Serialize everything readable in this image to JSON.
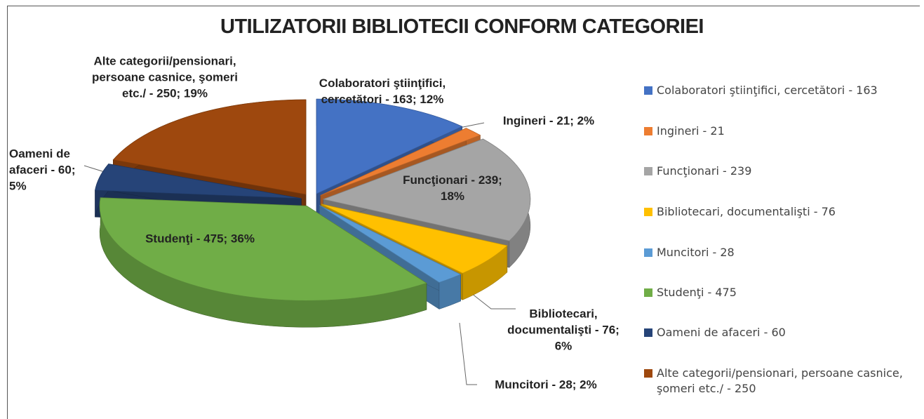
{
  "chart_data": {
    "type": "pie",
    "title": "UTILIZATORII BIBLIOTECII CONFORM CATEGORIEI",
    "categories": [
      "Colaboratori ştiinţifici, cercetători - 163",
      "Ingineri - 21",
      "Funcţionari - 239",
      "Bibliotecari, documentalişti - 76",
      "Muncitori - 28",
      "Studenţi - 475",
      "Oameni de afaceri - 60",
      "Alte categorii/pensionari, persoane casnice, şomeri etc./ - 250"
    ],
    "values": [
      163,
      21,
      239,
      76,
      28,
      475,
      60,
      250
    ],
    "value_labels": [
      "Colaboratori ştiinţifici, cercetători - 163; 12%",
      "Ingineri - 21; 2%",
      "Funcţionari - 239; 18%",
      "Bibliotecari, documentalişti - 76; 6%",
      "Muncitori - 28; 2%",
      "Studenţi - 475; 36%",
      "Oameni de afaceri - 60; 5%",
      "Alte categorii/pensionari, persoane casnice, şomeri etc./ - 250; 19%"
    ],
    "colors": [
      "#4472c4",
      "#ed7d31",
      "#a5a5a5",
      "#ffc000",
      "#5b9bd5",
      "#70ad47",
      "#264478",
      "#9e480e"
    ],
    "legend": "right"
  }
}
